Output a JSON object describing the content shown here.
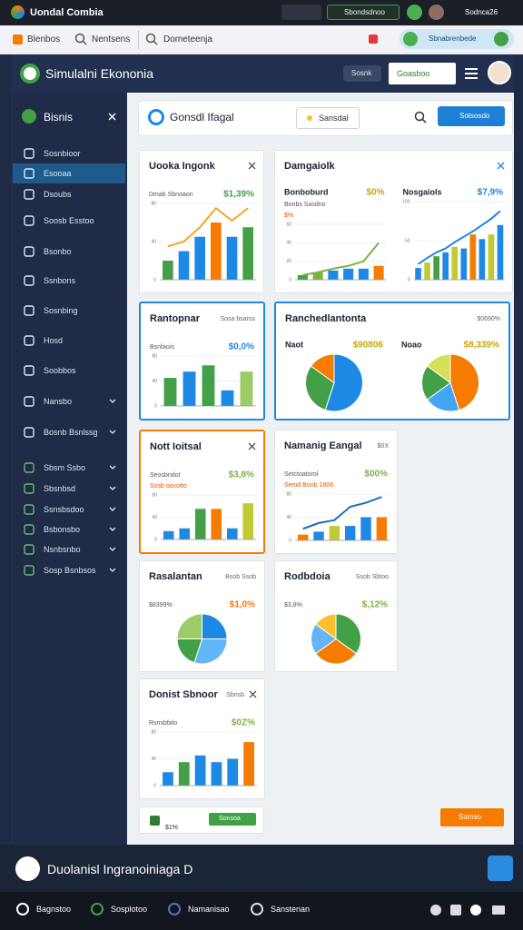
{
  "topbar": {
    "title": "Uondal Combia",
    "badge": "Sbondsdnoo",
    "user": "Sodnca26"
  },
  "toolbar": {
    "items": [
      "Blenbos",
      "Nentsens",
      "Dometeenja"
    ],
    "pill": "Sbnabrenbede"
  },
  "header": {
    "title": "Simulalni Ekononia",
    "button": "Sosnk",
    "action": "Goasboo"
  },
  "sidebar": {
    "title": "Bisnis",
    "active": 1,
    "items": [
      {
        "label": "Sosnbioor",
        "chevron": false
      },
      {
        "label": "Esooaa",
        "chevron": false
      },
      {
        "label": "Dsoubs",
        "chevron": false
      },
      {
        "label": "Soosb Esstoo",
        "chevron": false
      },
      {
        "label": "Bsonbo",
        "chevron": false
      },
      {
        "label": "Ssnbons",
        "chevron": false
      },
      {
        "label": "Sosnbing",
        "chevron": false
      },
      {
        "label": "Hosd",
        "chevron": false
      },
      {
        "label": "Soobbos",
        "chevron": false
      },
      {
        "label": "Nansbo",
        "chevron": true
      },
      {
        "label": "Bosnb Bsnlssg",
        "chevron": true
      },
      {
        "label": "Sbsm Ssbo",
        "chevron": true
      },
      {
        "label": "Sbsnbsd",
        "chevron": true
      },
      {
        "label": "Ssnsbsdoo",
        "chevron": true
      },
      {
        "label": "Bsbonsbo",
        "chevron": true
      },
      {
        "label": "Nsnbsnbo",
        "chevron": true
      },
      {
        "label": "Sosp Bsnbsos",
        "chevron": true
      }
    ]
  },
  "search": {
    "title": "Gonsdl Ifagal",
    "filter": "Sansdal",
    "button": "Sotsosdo"
  },
  "chart_data": [
    {
      "type": "bar-line",
      "title": "Uooka Ingonk",
      "subtitle": "Dmab Sbnoaon",
      "value_text": "$1,39%",
      "accent": "#43a047",
      "categories": [
        null,
        null,
        null,
        null,
        null,
        null
      ],
      "values": [
        20,
        30,
        45,
        60,
        45,
        55
      ],
      "colors": [
        "#43a047",
        "#1e88e5",
        "#1e88e5",
        "#f57c00",
        "#1e88e5",
        "#43a047"
      ],
      "line": {
        "color": "#f5a623",
        "values": [
          35,
          40,
          55,
          75,
          62,
          75
        ]
      },
      "ylim": [
        0,
        80
      ],
      "yticks": [
        0,
        40,
        80
      ]
    },
    {
      "type": "bar-line",
      "title": "Damgaiolk",
      "label": "Bonboburd",
      "subtitle": "Bonbs Sasdno",
      "subtitle2": "$%",
      "value_text": "$0%",
      "accent": "#c9a800",
      "categories": [
        null,
        null,
        null,
        null,
        null,
        null
      ],
      "values": [
        5,
        8,
        10,
        12,
        12,
        15
      ],
      "colors": [
        "#43a047",
        "#7cb342",
        "#1e88e5",
        "#1e88e5",
        "#1e88e5",
        "#f57c00"
      ],
      "line": {
        "color": "#7cb342",
        "values": [
          5,
          8,
          12,
          15,
          20,
          40
        ]
      },
      "ylim": [
        0,
        60
      ],
      "yticks": [
        0,
        20,
        40,
        60
      ]
    },
    {
      "type": "bar-line",
      "label": "Nosgaiols",
      "value_text": "$7,9%",
      "accent": "#1e88e5",
      "categories": [
        null,
        null,
        null,
        null,
        null,
        null,
        null,
        null,
        null,
        null
      ],
      "values": [
        15,
        22,
        30,
        35,
        42,
        40,
        58,
        52,
        58,
        70
      ],
      "colors": [
        "#1e88e5",
        "#c0ca33",
        "#43a047",
        "#1e88e5",
        "#c0ca33",
        "#1e88e5",
        "#f57c00",
        "#1e88e5",
        "#c0ca33",
        "#1e88e5"
      ],
      "line": {
        "color": "#1e88e5",
        "values": [
          20,
          28,
          35,
          40,
          48,
          55,
          62,
          70,
          78,
          88
        ]
      },
      "ylim": [
        0,
        100
      ],
      "yticks": [
        0,
        50,
        100
      ]
    },
    {
      "type": "bar",
      "title": "Rantopnar",
      "kpi": "Sosa bsarss",
      "subtitle": "Bsnfaois",
      "value_text": "$0,0%",
      "accent": "#1e88e5",
      "categories": [
        null,
        null,
        null,
        null,
        null
      ],
      "values": [
        45,
        55,
        65,
        25,
        55
      ],
      "colors": [
        "#43a047",
        "#1e88e5",
        "#43a047",
        "#1e88e5",
        "#9ccc65"
      ],
      "ylim": [
        0,
        80
      ],
      "yticks": [
        0,
        40,
        80
      ]
    },
    {
      "type": "pie",
      "title": "Ranchedlantonta",
      "kpi": "$0690%",
      "label": "Naot",
      "value_text": "$90806",
      "accent": "#c9a800",
      "values": [
        55,
        30,
        15
      ],
      "colors": [
        "#1e88e5",
        "#43a047",
        "#f57c00"
      ]
    },
    {
      "type": "pie",
      "label": "Noao",
      "value_text": "$8,339%",
      "accent": "#c9a800",
      "values": [
        45,
        20,
        20,
        15
      ],
      "colors": [
        "#f57c00",
        "#42a5f5",
        "#43a047",
        "#d4e157"
      ]
    },
    {
      "type": "bar",
      "title": "Nott Ioitsal",
      "subtitle": "Seosbndot",
      "subtitle2": "Sosb oocotto",
      "value_text": "$3,8%",
      "accent": "#7cb342",
      "categories": [
        null,
        null,
        null,
        null,
        null,
        null
      ],
      "values": [
        15,
        20,
        55,
        55,
        20,
        65
      ],
      "colors": [
        "#1e88e5",
        "#1e88e5",
        "#43a047",
        "#f57c00",
        "#1e88e5",
        "#c0ca33"
      ],
      "ylim": [
        0,
        80
      ],
      "yticks": [
        0,
        40,
        80
      ]
    },
    {
      "type": "bar-line",
      "title": "Namanig Eangal",
      "kpi": "$0X",
      "subtitle": "Setctoatorol",
      "subtitle2": "Semd Bonb 1806",
      "value_text": "$00%",
      "accent": "#7cb342",
      "categories": [
        null,
        null,
        null,
        null,
        null,
        null
      ],
      "values": [
        10,
        15,
        25,
        25,
        40,
        40
      ],
      "colors": [
        "#f57c00",
        "#1e88e5",
        "#c0ca33",
        "#1e88e5",
        "#1e88e5",
        "#f57c00"
      ],
      "line": {
        "color": "#1e6fb5",
        "values": [
          20,
          30,
          35,
          58,
          65,
          75
        ]
      },
      "ylim": [
        0,
        80
      ],
      "yticks": [
        0,
        40,
        80
      ]
    },
    {
      "type": "pie",
      "title": "Rasalantan",
      "kpi": "Bsob Ssob",
      "subtitle": "$8399%",
      "value_text": "$1,0%",
      "accent": "#f57c00",
      "values": [
        25,
        30,
        20,
        25
      ],
      "colors": [
        "#1e88e5",
        "#64b5f6",
        "#43a047",
        "#9ccc65"
      ]
    },
    {
      "type": "pie",
      "title": "Rodbdoia",
      "kpi": "Ssob Sbtoo",
      "subtitle": "$3,8%",
      "value_text": "$,12%",
      "accent": "#7cb342",
      "values": [
        35,
        30,
        20,
        15
      ],
      "colors": [
        "#43a047",
        "#f57c00",
        "#64b5f6",
        "#fbc02d"
      ]
    },
    {
      "type": "bar",
      "title": "Donist Sbnoor",
      "kpi": "Sbnsb",
      "subtitle": "Rsnsbfalo",
      "value_text": "$0Z%",
      "accent": "#7cb342",
      "categories": [
        null,
        null,
        null,
        null,
        null,
        null
      ],
      "values": [
        20,
        35,
        45,
        35,
        40,
        65
      ],
      "colors": [
        "#1e88e5",
        "#43a047",
        "#1e88e5",
        "#1e88e5",
        "#1e88e5",
        "#f57c00"
      ],
      "ylim": [
        0,
        80
      ],
      "yticks": [
        0,
        40,
        80
      ]
    }
  ],
  "summary": {
    "value": "$1%",
    "button": "Sonsoa"
  },
  "action_button": "Somso",
  "footer": {
    "text": "Duolanisl Ingranoiniaga D"
  },
  "bottom_nav": [
    "Bagnstoo",
    "Sosplotoo",
    "Namanisao",
    "Sanstenan"
  ]
}
